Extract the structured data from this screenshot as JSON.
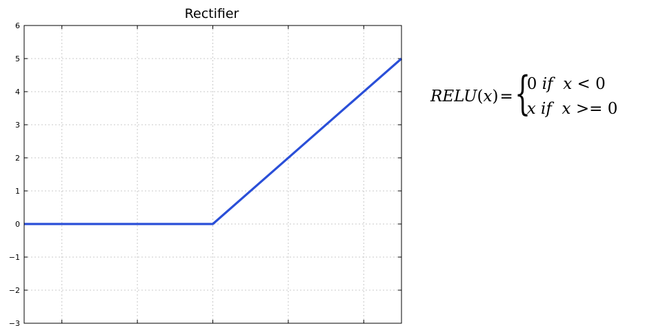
{
  "chart_data": {
    "type": "line",
    "title": "Rectifier",
    "xlabel": "",
    "ylabel": "",
    "xlim": [
      -5,
      5
    ],
    "ylim": [
      -3,
      6
    ],
    "x_ticks": [
      -4,
      -2,
      0,
      2,
      4
    ],
    "y_ticks": [
      -3,
      -2,
      -1,
      0,
      1,
      2,
      3,
      4,
      5,
      6
    ],
    "grid": true,
    "series": [
      {
        "x": [
          -5,
          0,
          5
        ],
        "y": [
          0,
          0,
          5
        ],
        "color": "#2a4fd8"
      }
    ]
  },
  "formula": {
    "lhs": "RELU",
    "arg": "x",
    "equals": "=",
    "cases": [
      {
        "value": "0",
        "condition": "if",
        "var": "x",
        "op": "<",
        "threshold": "0"
      },
      {
        "value": "x",
        "condition": "if",
        "var": "x",
        "op": ">=",
        "threshold": "0"
      }
    ]
  }
}
